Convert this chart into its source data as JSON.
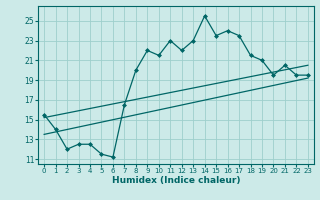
{
  "xlabel": "Humidex (Indice chaleur)",
  "bg_color": "#cceae8",
  "grid_color": "#9ecfcc",
  "line_color": "#006666",
  "xlim": [
    -0.5,
    23.5
  ],
  "ylim": [
    10.5,
    26.5
  ],
  "xticks": [
    0,
    1,
    2,
    3,
    4,
    5,
    6,
    7,
    8,
    9,
    10,
    11,
    12,
    13,
    14,
    15,
    16,
    17,
    18,
    19,
    20,
    21,
    22,
    23
  ],
  "yticks": [
    11,
    13,
    15,
    17,
    19,
    21,
    23,
    25
  ],
  "main_x": [
    0,
    1,
    2,
    3,
    4,
    5,
    6,
    7,
    8,
    9,
    10,
    11,
    12,
    13,
    14,
    15,
    16,
    17,
    18,
    19,
    20,
    21,
    22,
    23
  ],
  "main_y": [
    15.5,
    14.0,
    12.0,
    12.5,
    12.5,
    11.5,
    11.2,
    16.5,
    20.0,
    22.0,
    21.5,
    23.0,
    22.0,
    23.0,
    25.5,
    23.5,
    24.0,
    23.5,
    21.5,
    21.0,
    19.5,
    20.5,
    19.5,
    19.5
  ],
  "line1_x": [
    0,
    23
  ],
  "line1_y": [
    15.2,
    20.5
  ],
  "line2_x": [
    0,
    23
  ],
  "line2_y": [
    13.5,
    19.2
  ]
}
